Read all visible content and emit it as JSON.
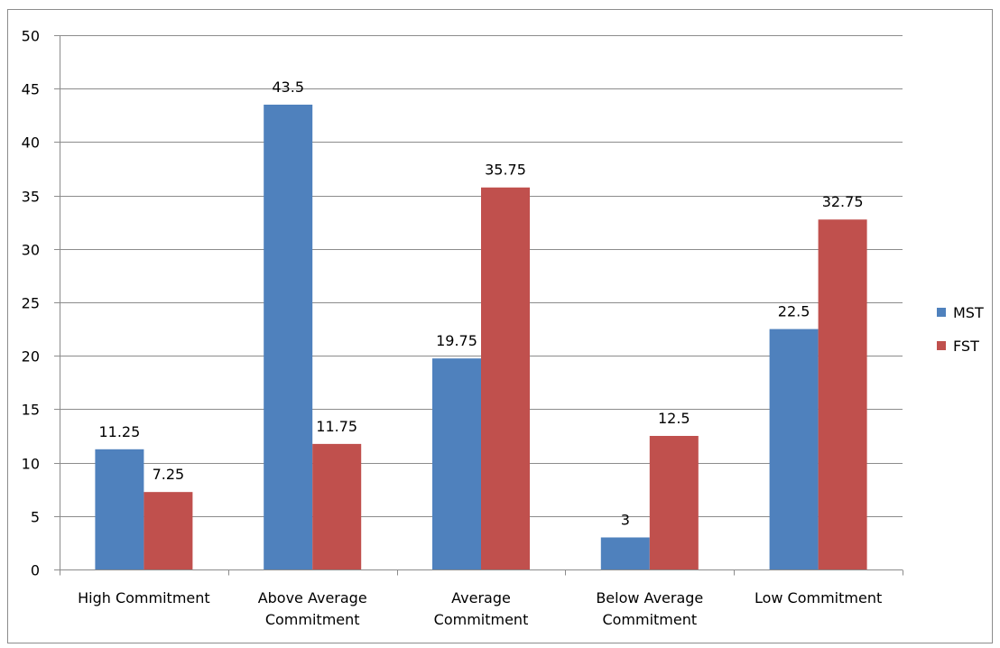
{
  "chart_data": {
    "type": "bar",
    "title": "",
    "xlabel": "",
    "ylabel": "",
    "categories": [
      [
        "High Commitment"
      ],
      [
        "Above Average",
        "Commitment"
      ],
      [
        "Average",
        "Commitment"
      ],
      [
        "Below Average",
        "Commitment"
      ],
      [
        "Low Commitment"
      ]
    ],
    "series": [
      {
        "name": "MST",
        "color": "#4F81BD",
        "values": [
          11.25,
          43.5,
          19.75,
          3,
          22.5
        ],
        "labels": [
          "11.25",
          "43.5",
          "19.75",
          "3",
          "22.5"
        ]
      },
      {
        "name": "FST",
        "color": "#C0504D",
        "values": [
          7.25,
          11.75,
          35.75,
          12.5,
          32.75
        ],
        "labels": [
          "7.25",
          "11.75",
          "35.75",
          "12.5",
          "32.75"
        ]
      }
    ],
    "ylim": [
      0,
      50
    ],
    "yticks": [
      "0",
      "5",
      "10",
      "15",
      "20",
      "25",
      "30",
      "35",
      "40",
      "45",
      "50"
    ],
    "grid": true,
    "legend_position": "right"
  }
}
